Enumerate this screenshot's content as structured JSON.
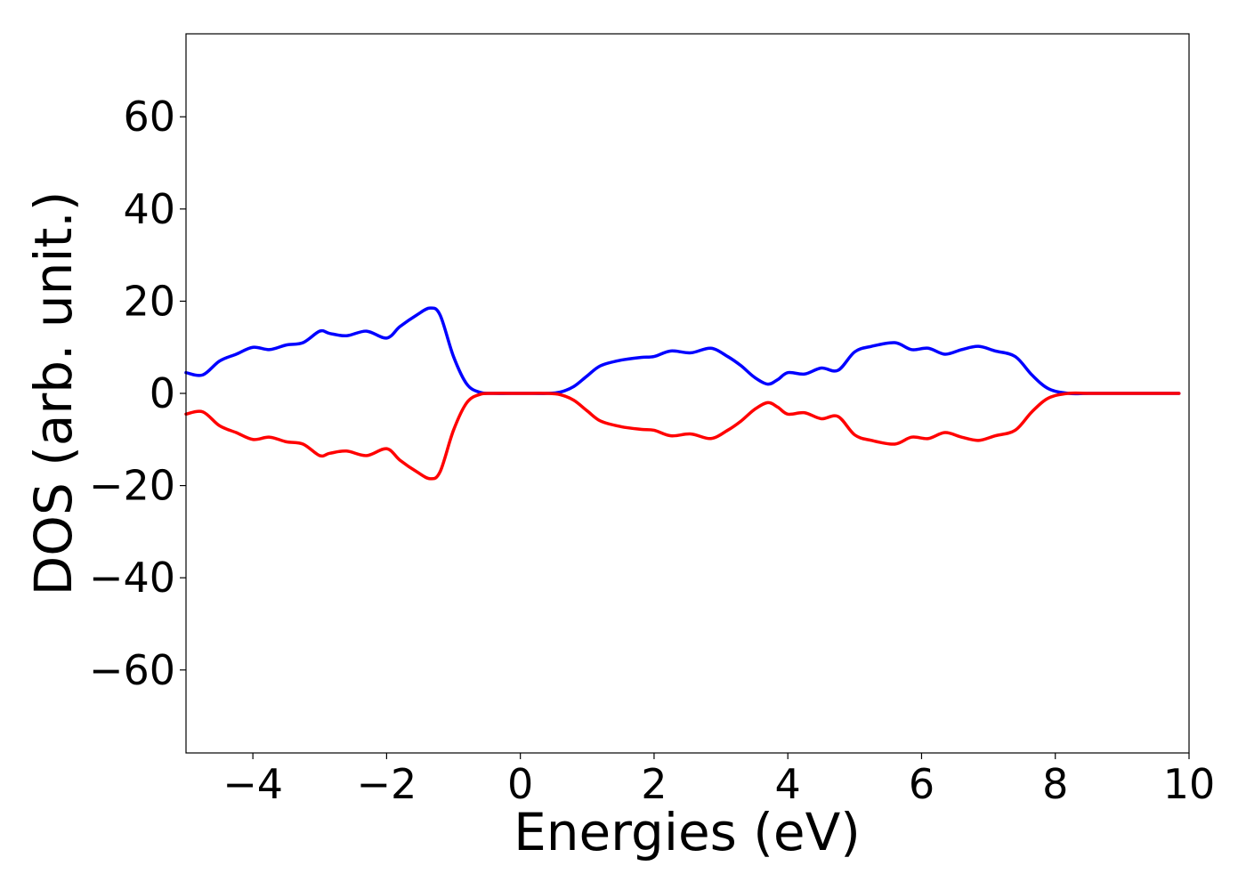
{
  "chart_data": {
    "type": "line",
    "title": "",
    "xlabel": "Energies (eV)",
    "ylabel": "DOS (arb. unit.)",
    "xlim": [
      -5,
      10
    ],
    "ylim": [
      -78,
      78
    ],
    "x_ticks": [
      -4,
      -2,
      0,
      2,
      4,
      6,
      8,
      10
    ],
    "y_ticks": [
      -60,
      -40,
      -20,
      0,
      20,
      40,
      60
    ],
    "x_tick_labels": [
      "−4",
      "−2",
      "0",
      "2",
      "4",
      "6",
      "8",
      "10"
    ],
    "y_tick_labels": [
      "−60",
      "−40",
      "−20",
      "0",
      "20",
      "40",
      "60"
    ],
    "grid": false,
    "legend": "none",
    "series": [
      {
        "color": "#0000ff",
        "x": [
          -5.0,
          -4.75,
          -4.5,
          -4.25,
          -4.0,
          -3.75,
          -3.5,
          -3.25,
          -3.0,
          -2.85,
          -2.6,
          -2.3,
          -2.0,
          -1.8,
          -1.55,
          -1.35,
          -1.2,
          -1.0,
          -0.8,
          -0.6,
          -0.4,
          0.0,
          0.4,
          0.6,
          0.8,
          1.0,
          1.2,
          1.5,
          1.8,
          2.0,
          2.25,
          2.55,
          2.85,
          3.1,
          3.3,
          3.5,
          3.7,
          3.85,
          4.0,
          4.25,
          4.5,
          4.75,
          5.0,
          5.25,
          5.6,
          5.85,
          6.1,
          6.35,
          6.6,
          6.85,
          7.1,
          7.4,
          7.65,
          7.9,
          8.2,
          8.5,
          9.0,
          9.5,
          9.85
        ],
        "y": [
          4.5,
          4.0,
          7.0,
          8.5,
          10.0,
          9.5,
          10.5,
          11.0,
          13.5,
          13.0,
          12.5,
          13.5,
          12.0,
          14.5,
          17.0,
          18.5,
          17.0,
          8.0,
          2.0,
          0.2,
          0.0,
          0.0,
          0.0,
          0.3,
          1.5,
          3.8,
          6.0,
          7.2,
          7.8,
          8.0,
          9.2,
          8.8,
          9.8,
          8.0,
          6.0,
          3.5,
          2.0,
          3.0,
          4.5,
          4.2,
          5.5,
          5.0,
          9.0,
          10.2,
          11.0,
          9.5,
          9.8,
          8.5,
          9.5,
          10.2,
          9.2,
          8.0,
          4.0,
          1.0,
          0.0,
          0.0,
          0.0,
          0.0,
          0.0
        ]
      },
      {
        "color": "#ff0000",
        "x": [
          -5.0,
          -4.75,
          -4.5,
          -4.25,
          -4.0,
          -3.75,
          -3.5,
          -3.25,
          -3.0,
          -2.85,
          -2.6,
          -2.3,
          -2.0,
          -1.8,
          -1.55,
          -1.35,
          -1.2,
          -1.0,
          -0.8,
          -0.6,
          -0.4,
          0.0,
          0.4,
          0.6,
          0.8,
          1.0,
          1.2,
          1.5,
          1.8,
          2.0,
          2.25,
          2.55,
          2.85,
          3.1,
          3.3,
          3.5,
          3.7,
          3.85,
          4.0,
          4.25,
          4.5,
          4.75,
          5.0,
          5.25,
          5.6,
          5.85,
          6.1,
          6.35,
          6.6,
          6.85,
          7.1,
          7.4,
          7.65,
          7.9,
          8.2,
          8.5,
          9.0,
          9.5,
          9.85
        ],
        "y": [
          -4.5,
          -4.0,
          -7.0,
          -8.5,
          -10.0,
          -9.5,
          -10.5,
          -11.0,
          -13.5,
          -13.0,
          -12.5,
          -13.5,
          -12.0,
          -14.5,
          -17.0,
          -18.5,
          -17.0,
          -8.0,
          -2.0,
          -0.2,
          0.0,
          0.0,
          0.0,
          -0.3,
          -1.5,
          -3.8,
          -6.0,
          -7.2,
          -7.8,
          -8.0,
          -9.2,
          -8.8,
          -9.8,
          -8.0,
          -6.0,
          -3.5,
          -2.0,
          -3.0,
          -4.5,
          -4.2,
          -5.5,
          -5.0,
          -9.0,
          -10.2,
          -11.0,
          -9.5,
          -9.8,
          -8.5,
          -9.5,
          -10.2,
          -9.2,
          -8.0,
          -4.0,
          -1.0,
          0.0,
          0.0,
          0.0,
          0.0,
          0.0
        ]
      }
    ]
  }
}
